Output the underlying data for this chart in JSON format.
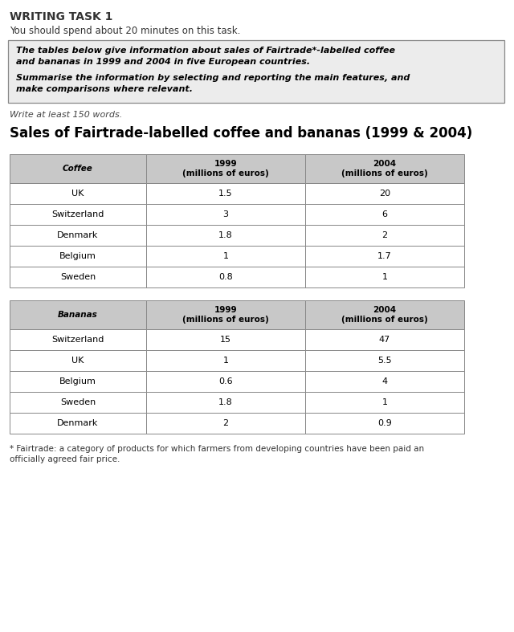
{
  "title_main": "WRITING TASK 1",
  "subtitle": "You should spend about 20 minutes on this task.",
  "box_line1": "The tables below give information about sales of Fairtrade*-labelled coffee",
  "box_line2": "and bananas in 1999 and 2004 in five European countries.",
  "box_line3": "Summarise the information by selecting and reporting the main features, and",
  "box_line4": "make comparisons where relevant.",
  "write_note": "Write at least 150 words.",
  "chart_title": "Sales of Fairtrade-labelled coffee and bananas (1999 & 2004)",
  "coffee_header": [
    "Coffee",
    "1999\n(millions of euros)",
    "2004\n(millions of euros)"
  ],
  "coffee_data": [
    [
      "UK",
      "1.5",
      "20"
    ],
    [
      "Switzerland",
      "3",
      "6"
    ],
    [
      "Denmark",
      "1.8",
      "2"
    ],
    [
      "Belgium",
      "1",
      "1.7"
    ],
    [
      "Sweden",
      "0.8",
      "1"
    ]
  ],
  "bananas_header": [
    "Bananas",
    "1999\n(millions of euros)",
    "2004\n(millions of euros)"
  ],
  "bananas_data": [
    [
      "Switzerland",
      "15",
      "47"
    ],
    [
      "UK",
      "1",
      "5.5"
    ],
    [
      "Belgium",
      "0.6",
      "4"
    ],
    [
      "Sweden",
      "1.8",
      "1"
    ],
    [
      "Denmark",
      "2",
      "0.9"
    ]
  ],
  "footnote_line1": "* Fairtrade: a category of products for which farmers from developing countries have been paid an",
  "footnote_line2": "officially agreed fair price.",
  "header_bg_color": "#c8c8c8",
  "border_color": "#888888",
  "box_bg": "#ececec"
}
